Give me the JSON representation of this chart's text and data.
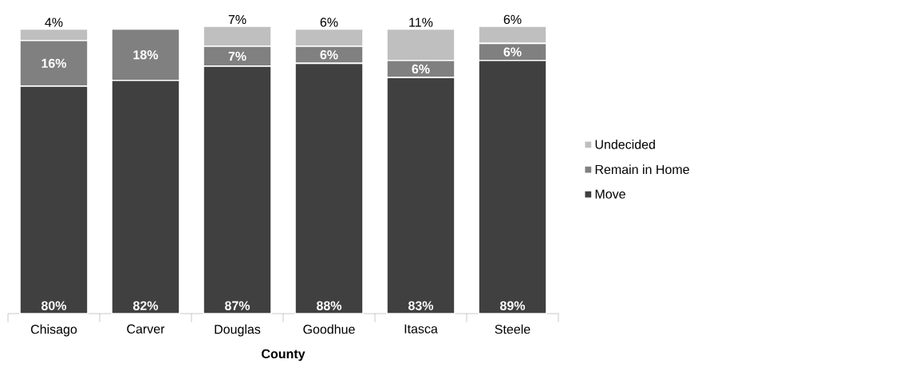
{
  "chart_data": {
    "type": "bar",
    "stacked": true,
    "xlabel": "County",
    "categories": [
      "Chisago",
      "Carver",
      "Douglas",
      "Goodhue",
      "Itasca",
      "Steele"
    ],
    "series": [
      {
        "name": "Move",
        "color": "#404040",
        "values": [
          80,
          82,
          87,
          88,
          83,
          89
        ],
        "value_labels": [
          "80%",
          "82%",
          "87%",
          "88%",
          "83%",
          "89%"
        ]
      },
      {
        "name": "Remain in Home",
        "color": "#808080",
        "values": [
          16,
          18,
          7,
          6,
          6,
          6
        ],
        "value_labels": [
          "16%",
          "18%",
          "7%",
          "6%",
          "6%",
          "6%"
        ]
      },
      {
        "name": "Undecided",
        "color": "#bfbfbf",
        "values": [
          4,
          0,
          7,
          6,
          11,
          6
        ],
        "value_labels": [
          "4%",
          null,
          "7%",
          "6%",
          "11%",
          "6%"
        ]
      }
    ],
    "legend": "right"
  }
}
